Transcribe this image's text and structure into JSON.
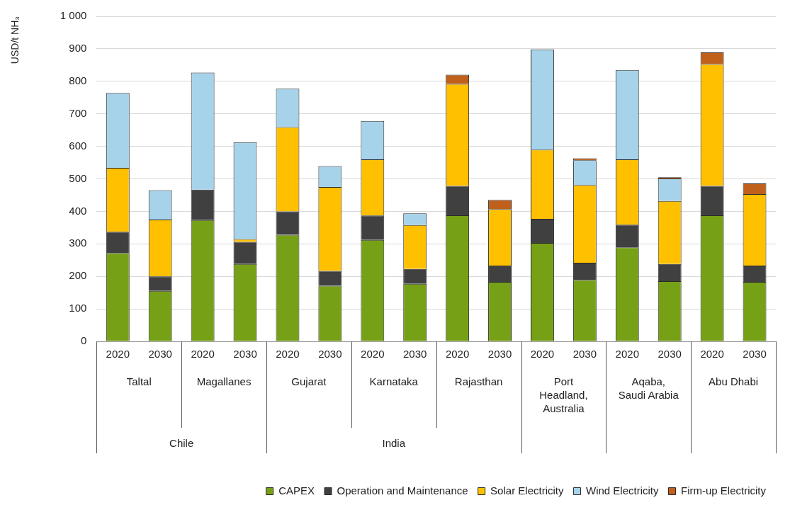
{
  "chart_data": {
    "type": "bar",
    "stacked": true,
    "ylabel": "USD/t NH₃",
    "categories": [
      "2020",
      "2030",
      "2020",
      "2030",
      "2020",
      "2030",
      "2020",
      "2030",
      "2020",
      "2030",
      "2020",
      "2030",
      "2020",
      "2030",
      "2020",
      "2030"
    ],
    "series": [
      {
        "name": "CAPEX",
        "color": "#76a116",
        "values": [
          272,
          155,
          373,
          238,
          328,
          171,
          312,
          177,
          388,
          183,
          303,
          189,
          289,
          185,
          388,
          183
        ]
      },
      {
        "name": "Operation and Maintenance",
        "color": "#404040",
        "values": [
          65,
          45,
          94,
          68,
          72,
          46,
          75,
          46,
          90,
          50,
          74,
          53,
          70,
          53,
          90,
          50
        ]
      },
      {
        "name": "Solar Electricity",
        "color": "#ffc000",
        "values": [
          197,
          175,
          0,
          9,
          259,
          258,
          173,
          135,
          314,
          174,
          213,
          239,
          201,
          194,
          375,
          220
        ]
      },
      {
        "name": "Wind Electricity",
        "color": "#a6d3ea",
        "values": [
          230,
          90,
          360,
          298,
          118,
          64,
          118,
          36,
          0,
          0,
          308,
          76,
          275,
          69,
          0,
          0
        ]
      },
      {
        "name": "Firm-up Electricity",
        "color": "#c0601a",
        "values": [
          0,
          0,
          0,
          0,
          0,
          0,
          0,
          0,
          28,
          28,
          0,
          6,
          0,
          4,
          36,
          33
        ]
      }
    ],
    "ylim": [
      0,
      1000
    ],
    "yticks": [
      0,
      100,
      200,
      300,
      400,
      500,
      600,
      700,
      800,
      900,
      {
        "value": 1000,
        "label": "1 000"
      }
    ],
    "grid": "y",
    "legend": "bottom",
    "annotations": [
      "Taltal",
      "Magallanes",
      "Gujarat",
      "Karnataka",
      "Rajasthan",
      "Port Headland, Australia",
      "Aqaba, Saudi Arabia",
      "Abu Dhabi",
      "Chile",
      "India"
    ]
  }
}
